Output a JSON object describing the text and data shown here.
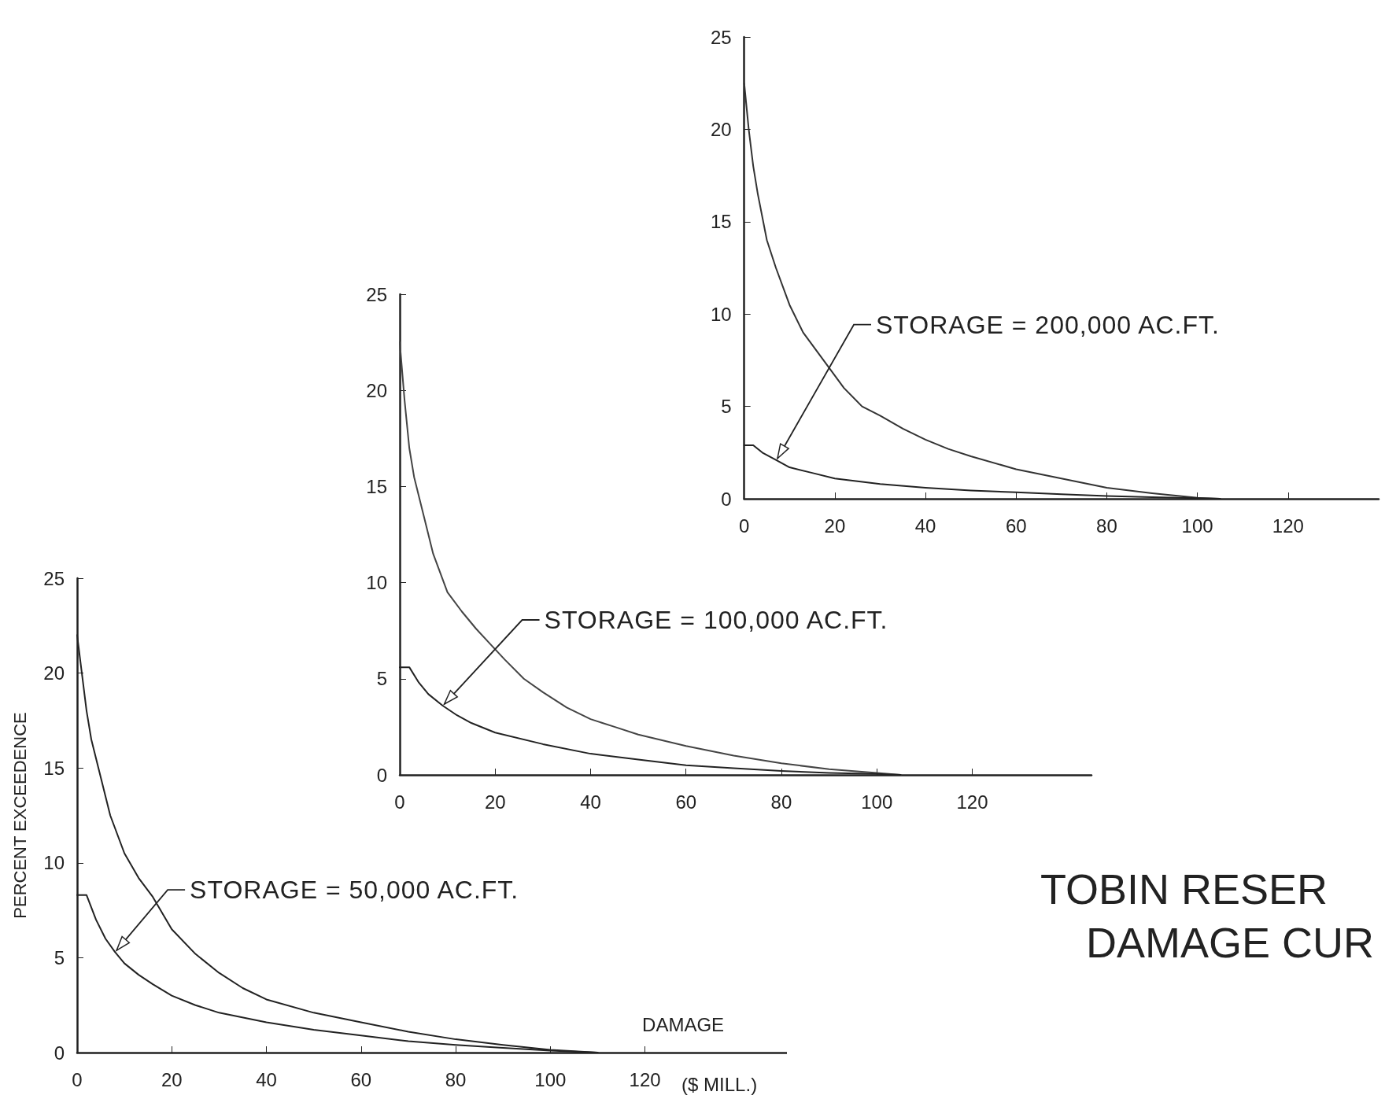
{
  "chart_data": [
    {
      "type": "line",
      "xlim": [
        0,
        140
      ],
      "xticks": [
        0,
        20,
        40,
        60,
        80,
        100,
        120
      ],
      "ylim": [
        0,
        25
      ],
      "yticks": [
        0,
        5,
        10,
        15,
        20,
        25
      ],
      "marker": "none",
      "line_style": "solid",
      "series": [
        {
          "color": "#333333",
          "x": [
            0,
            1,
            2,
            3,
            5,
            7,
            10,
            13,
            16,
            19,
            22,
            26,
            30,
            35,
            40,
            45,
            50,
            60,
            70,
            80,
            90,
            100,
            105
          ],
          "values": [
            22.5,
            20,
            18,
            16.5,
            14,
            12.5,
            10.5,
            9,
            8,
            7,
            6,
            5,
            4.5,
            3.8,
            3.2,
            2.7,
            2.3,
            1.6,
            1.1,
            0.6,
            0.3,
            0.05,
            0
          ]
        },
        {
          "color": "#222222",
          "x": [
            0,
            2,
            4,
            7,
            10,
            15,
            20,
            30,
            40,
            50,
            60,
            70,
            80,
            90,
            100,
            105
          ],
          "values": [
            2.9,
            2.9,
            2.5,
            2.1,
            1.7,
            1.4,
            1.1,
            0.8,
            0.6,
            0.45,
            0.35,
            0.25,
            0.15,
            0.08,
            0.03,
            0
          ]
        }
      ],
      "annotations": [
        {
          "text": "STORAGE = 200,000 AC.FT.",
          "x": 7,
          "y": 2.1
        }
      ]
    },
    {
      "type": "line",
      "xlim": [
        0,
        145
      ],
      "xticks": [
        0,
        20,
        40,
        60,
        80,
        100,
        120
      ],
      "ylim": [
        0,
        25
      ],
      "yticks": [
        0,
        5,
        10,
        15,
        20,
        25
      ],
      "marker": "none",
      "line_style": "solid",
      "series": [
        {
          "color": "#444444",
          "x": [
            0,
            1,
            2,
            3,
            5,
            7,
            10,
            13,
            16,
            19,
            22,
            26,
            30,
            35,
            40,
            45,
            50,
            60,
            70,
            80,
            90,
            100,
            105
          ],
          "values": [
            22.5,
            19.5,
            17,
            15.5,
            13.5,
            11.5,
            9.5,
            8.5,
            7.6,
            6.8,
            6,
            5,
            4.3,
            3.5,
            2.9,
            2.5,
            2.1,
            1.5,
            1,
            0.6,
            0.3,
            0.1,
            0
          ]
        },
        {
          "color": "#222222",
          "x": [
            0,
            2,
            4,
            6,
            9,
            12,
            15,
            20,
            30,
            40,
            50,
            60,
            70,
            80,
            90,
            100,
            105
          ],
          "values": [
            5.6,
            5.6,
            4.8,
            4.2,
            3.6,
            3.1,
            2.7,
            2.2,
            1.6,
            1.1,
            0.8,
            0.5,
            0.35,
            0.2,
            0.1,
            0.05,
            0
          ]
        }
      ],
      "annotations": [
        {
          "text": "STORAGE = 100,000 AC.FT.",
          "x": 9,
          "y": 3.6
        }
      ]
    },
    {
      "type": "line",
      "xlabel": "DAMAGE",
      "ylabel": "PERCENT EXCEEDENCE",
      "xlim": [
        0,
        150
      ],
      "xticks": [
        0,
        20,
        40,
        60,
        80,
        100,
        120
      ],
      "ylim": [
        0,
        25
      ],
      "yticks": [
        0,
        5,
        10,
        15,
        20,
        25
      ],
      "marker": "none",
      "line_style": "solid",
      "series": [
        {
          "color": "#222222",
          "x": [
            0,
            1,
            2,
            3,
            5,
            7,
            10,
            13,
            16,
            20,
            25,
            30,
            35,
            40,
            50,
            60,
            70,
            80,
            90,
            100,
            110
          ],
          "values": [
            22,
            20,
            18,
            16.5,
            14.5,
            12.5,
            10.5,
            9.2,
            8.2,
            6.5,
            5.2,
            4.2,
            3.4,
            2.8,
            2.1,
            1.6,
            1.1,
            0.7,
            0.4,
            0.15,
            0
          ]
        },
        {
          "color": "#222222",
          "x": [
            0,
            2,
            4,
            6,
            8,
            10,
            13,
            16,
            20,
            25,
            30,
            40,
            50,
            60,
            70,
            80,
            90,
            100,
            110
          ],
          "values": [
            8.3,
            8.3,
            7,
            6,
            5.3,
            4.7,
            4.1,
            3.6,
            3,
            2.5,
            2.1,
            1.6,
            1.2,
            0.9,
            0.6,
            0.4,
            0.25,
            0.1,
            0
          ]
        }
      ],
      "annotations": [
        {
          "text": "STORAGE = 50,000 AC.FT.",
          "x": 8,
          "y": 5.3
        },
        "($ MILL.)"
      ]
    },
    {
      "type": "other",
      "title": "TOBIN RESER",
      "subtitle": "DAMAGE CUR"
    }
  ]
}
